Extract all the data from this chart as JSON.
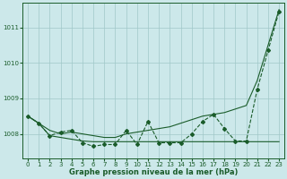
{
  "x": [
    0,
    1,
    2,
    3,
    4,
    5,
    6,
    7,
    8,
    9,
    10,
    11,
    12,
    13,
    14,
    15,
    16,
    17,
    18,
    19,
    20,
    21,
    22,
    23
  ],
  "line_smooth": [
    1008.5,
    1008.3,
    1008.1,
    1008.0,
    1008.05,
    1008.0,
    1007.95,
    1007.9,
    1007.9,
    1008.0,
    1008.05,
    1008.1,
    1008.15,
    1008.2,
    1008.3,
    1008.4,
    1008.5,
    1008.55,
    1008.6,
    1008.7,
    1008.8,
    1009.5,
    1010.5,
    1011.5
  ],
  "line_data": [
    1008.5,
    1008.3,
    1007.95,
    1008.05,
    1008.1,
    1007.75,
    1007.65,
    1007.7,
    1007.7,
    1008.1,
    1007.7,
    1008.35,
    1007.75,
    1007.75,
    1007.75,
    1008.0,
    1008.35,
    1008.55,
    1008.15,
    1007.8,
    1007.8,
    1009.25,
    1010.35,
    1011.45
  ],
  "line_flat": [
    1008.5,
    1008.3,
    1007.95,
    1007.9,
    1007.85,
    1007.8,
    1007.78,
    1007.78,
    1007.78,
    1007.78,
    1007.78,
    1007.78,
    1007.78,
    1007.78,
    1007.78,
    1007.78,
    1007.78,
    1007.78,
    1007.78,
    1007.78,
    1007.78,
    1007.78,
    1007.78,
    1007.78
  ],
  "bg_color": "#cce8ea",
  "grid_color": "#a0c8c8",
  "line_color": "#1a5c2a",
  "xlabel": "Graphe pression niveau de la mer (hPa)",
  "ylim_min": 1007.3,
  "ylim_max": 1011.7,
  "yticks": [
    1008,
    1009,
    1010,
    1011
  ],
  "xticks": [
    0,
    1,
    2,
    3,
    4,
    5,
    6,
    7,
    8,
    9,
    10,
    11,
    12,
    13,
    14,
    15,
    16,
    17,
    18,
    19,
    20,
    21,
    22,
    23
  ]
}
